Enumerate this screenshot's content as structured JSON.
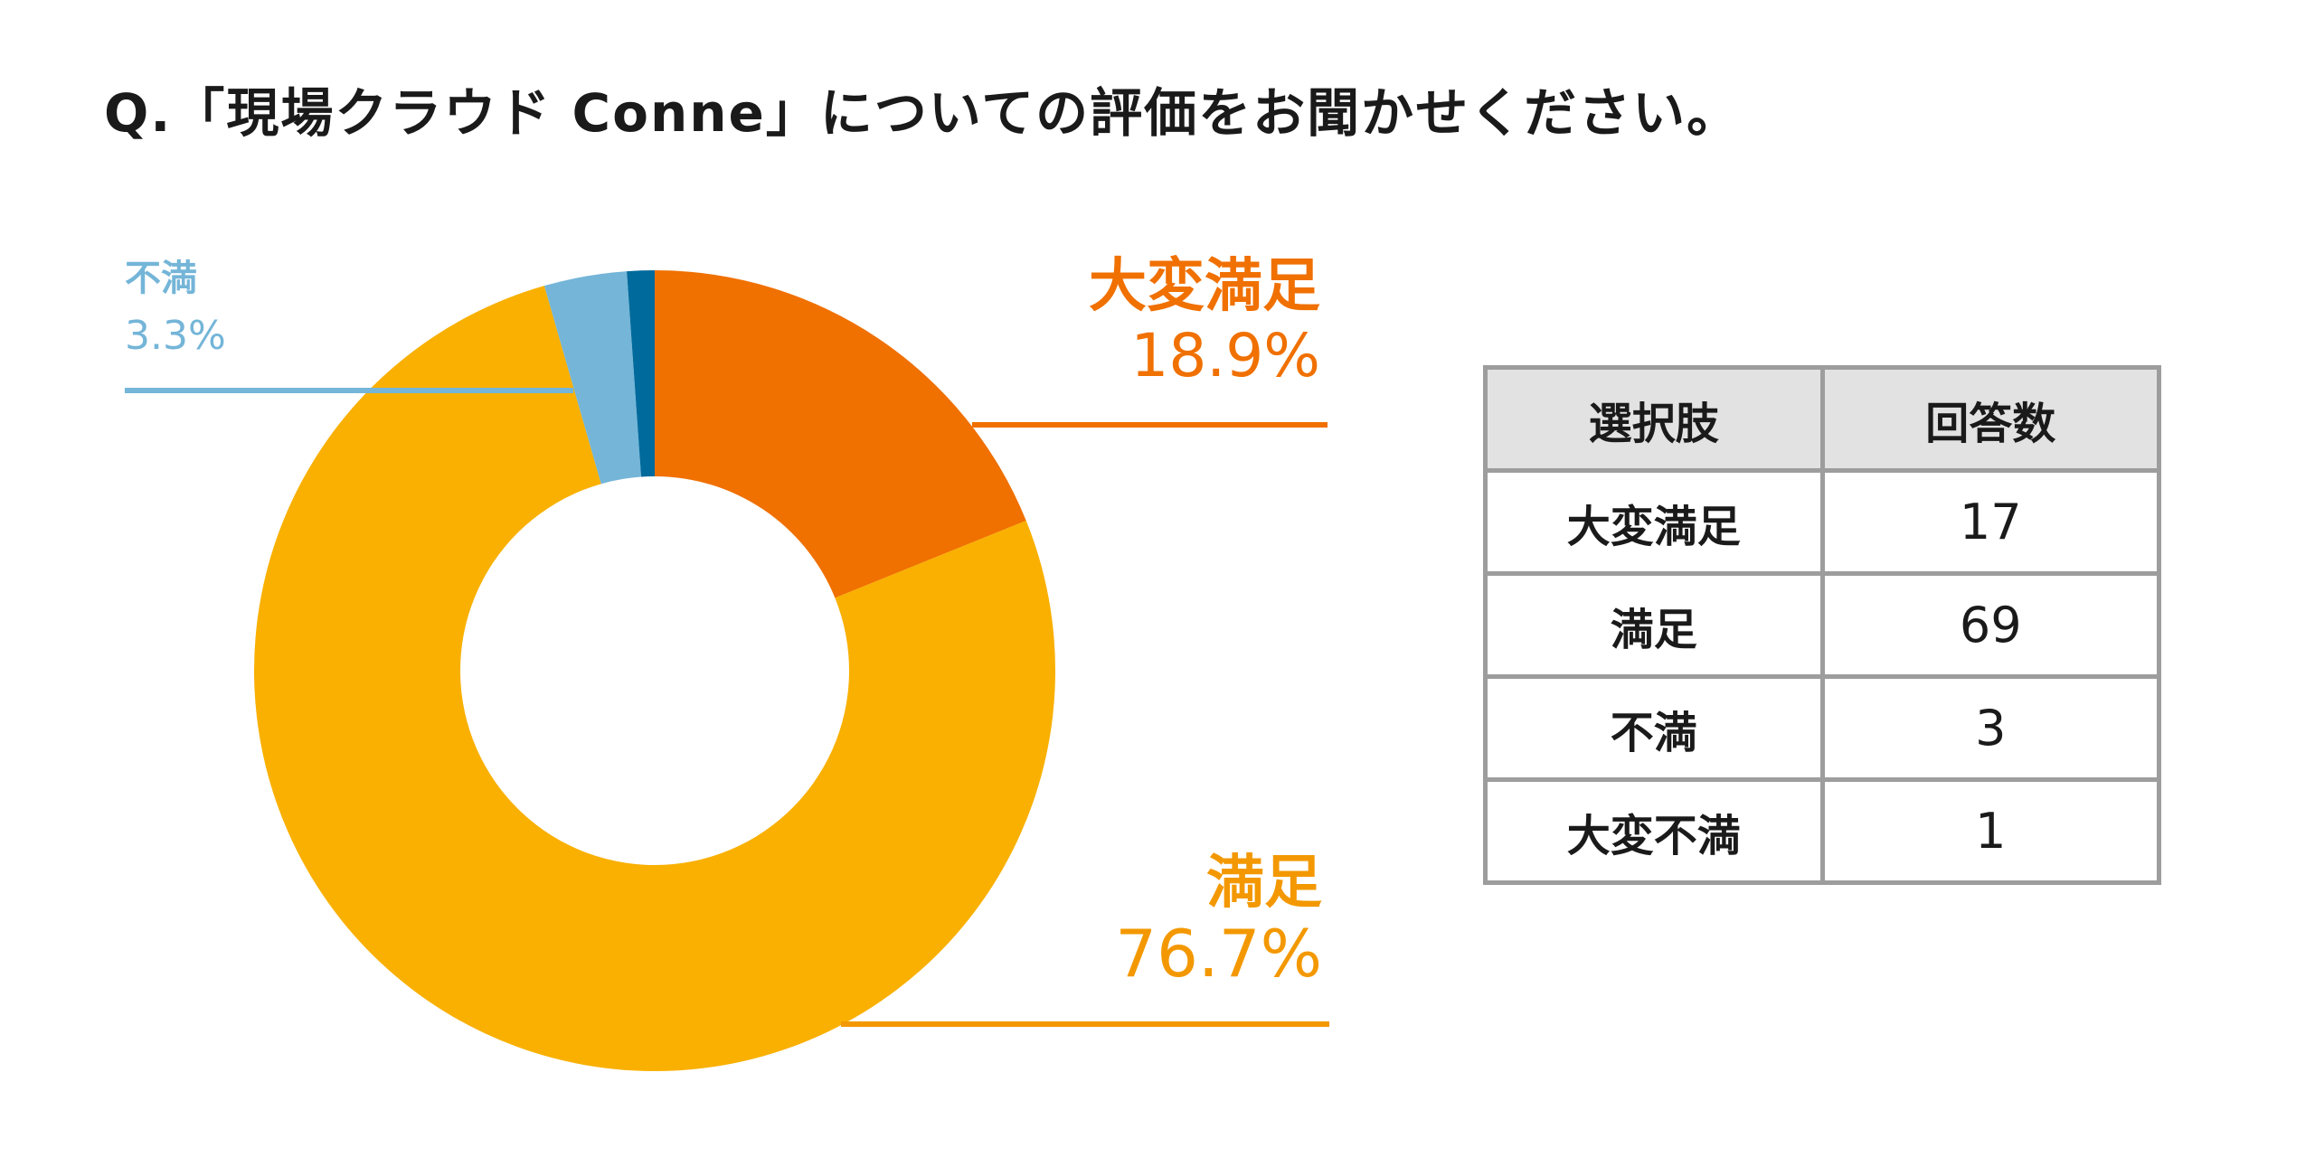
{
  "title": "Q.「現場クラウド Conne」についての評価をお聞かせください。",
  "chart_data": {
    "type": "pie",
    "subtype": "donut",
    "title": "Q.「現場クラウド Conne」についての評価をお聞かせください。",
    "categories": [
      "大変満足",
      "満足",
      "不満",
      "大変不満"
    ],
    "values": [
      17,
      69,
      3,
      1
    ],
    "colors": [
      "#f07000",
      "#f9b000",
      "#74b5d8",
      "#006a9c"
    ],
    "callouts": [
      {
        "label": "大変満足",
        "percent": "18.9%",
        "color": "#f07000"
      },
      {
        "label": "満足",
        "percent": "76.7%",
        "color": "#f39800"
      },
      {
        "label": "不満",
        "percent": "3.3%",
        "color": "#74b5d8"
      }
    ],
    "legend": "none"
  },
  "table": {
    "headers": [
      "選択肢",
      "回答数"
    ],
    "rows": [
      [
        "大変満足",
        "17"
      ],
      [
        "満足",
        "69"
      ],
      [
        "不満",
        "3"
      ],
      [
        "大変不満",
        "1"
      ]
    ]
  }
}
